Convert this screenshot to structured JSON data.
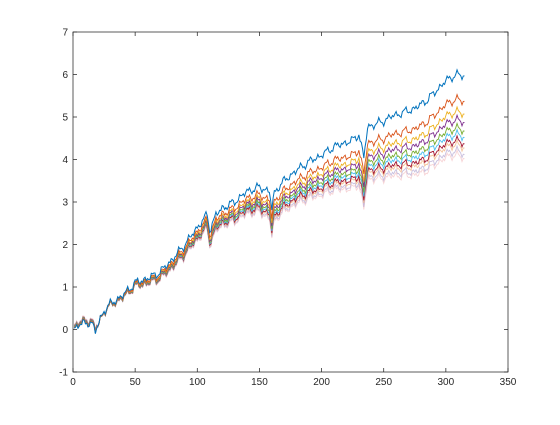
{
  "chart_data": {
    "type": "line",
    "title": "",
    "xlabel": "",
    "ylabel": "",
    "xlim": [
      0,
      350
    ],
    "ylim": [
      -1,
      7
    ],
    "xticks": [
      0,
      50,
      100,
      150,
      200,
      250,
      300,
      350
    ],
    "yticks": [
      -1,
      0,
      1,
      2,
      3,
      4,
      5,
      6,
      7
    ],
    "xtick_labels": [
      "0",
      "50",
      "100",
      "150",
      "200",
      "250",
      "300",
      "350"
    ],
    "ytick_labels": [
      "-1",
      "0",
      "1",
      "2",
      "3",
      "4",
      "5",
      "6",
      "7"
    ],
    "grid": false,
    "legend": "none",
    "n_points": 315,
    "base_path": {
      "x": [
        1,
        5,
        10,
        15,
        18,
        20,
        25,
        30,
        40,
        50,
        60,
        70,
        80,
        90,
        100,
        108,
        110,
        113,
        115,
        120,
        130,
        140,
        150,
        158,
        160,
        162,
        165,
        170,
        180,
        190,
        200,
        210,
        220,
        225,
        230,
        234,
        237,
        240,
        245,
        250,
        255,
        260,
        265,
        270,
        275,
        280,
        285,
        290,
        295,
        300,
        305,
        310,
        315
      ],
      "y": [
        0.0,
        0.15,
        0.12,
        0.18,
        -0.05,
        0.1,
        0.45,
        0.6,
        0.8,
        1.1,
        1.2,
        1.35,
        1.65,
        2.0,
        2.4,
        2.7,
        2.35,
        2.55,
        2.7,
        2.85,
        3.0,
        3.25,
        3.35,
        3.25,
        2.85,
        3.2,
        3.35,
        3.5,
        3.75,
        3.95,
        4.1,
        4.3,
        4.4,
        4.45,
        4.6,
        4.05,
        4.75,
        4.8,
        4.85,
        4.9,
        5.0,
        5.05,
        5.1,
        5.15,
        5.2,
        5.3,
        5.4,
        5.55,
        5.7,
        5.85,
        5.95,
        6.0,
        5.95
      ]
    },
    "series_final_values": [
      5.95,
      5.35,
      5.05,
      4.85,
      4.65,
      4.5,
      4.35,
      4.25,
      4.1,
      4.0
    ],
    "series_colors": [
      "#0072BD",
      "#D95319",
      "#EDB120",
      "#7E2F8E",
      "#77AC30",
      "#4DBEEE",
      "#A2142F",
      "#F0B07A",
      "#B7A9D3",
      "#F4C6C8"
    ]
  }
}
